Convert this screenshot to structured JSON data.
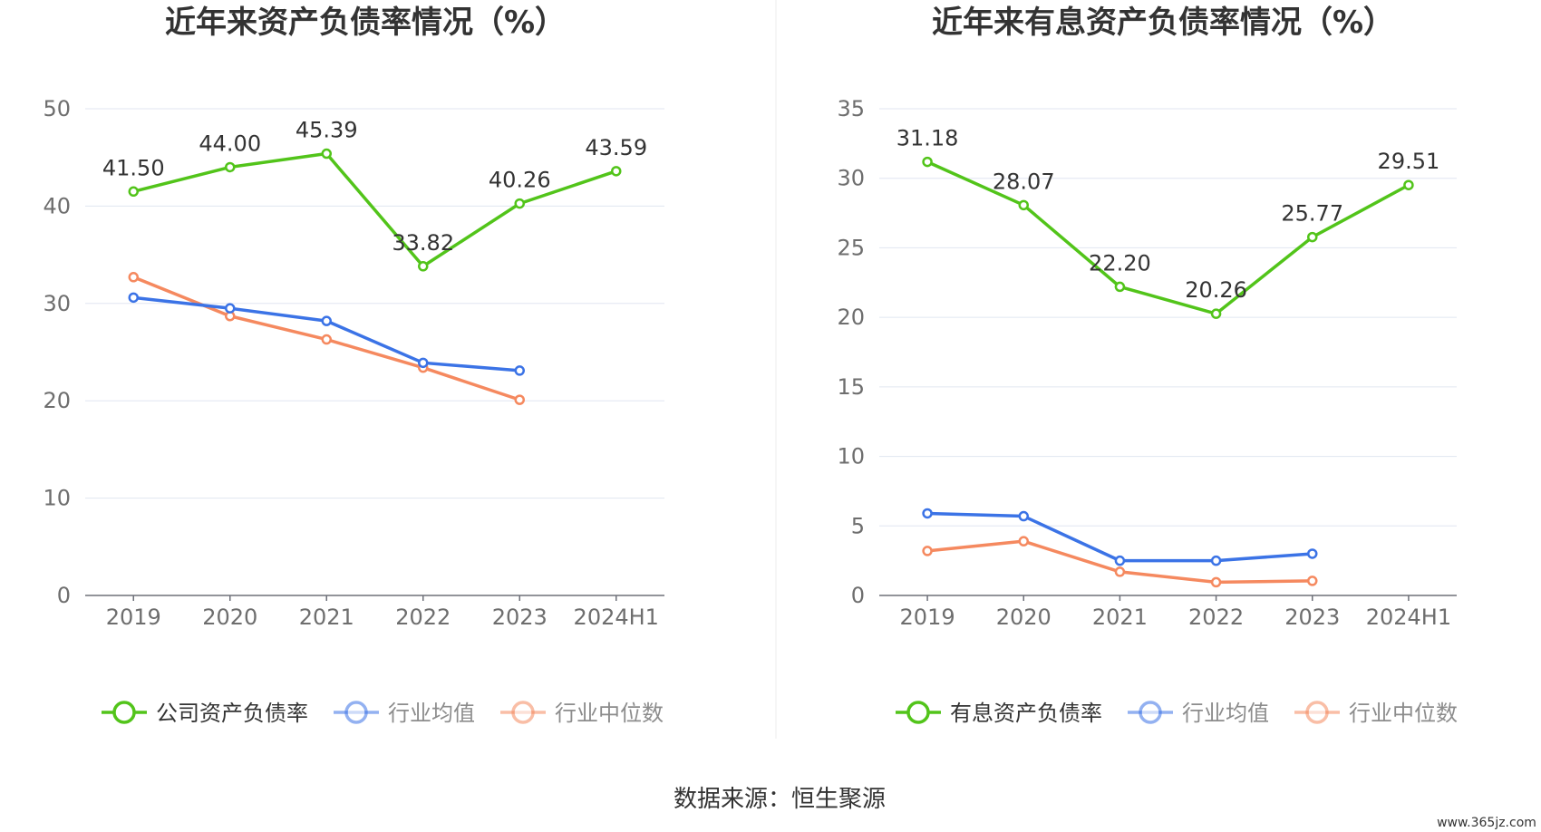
{
  "chart_data": [
    {
      "type": "line",
      "title": "近年来资产负债率情况（%）",
      "categories": [
        "2019",
        "2020",
        "2021",
        "2022",
        "2023",
        "2024H1"
      ],
      "ylim": [
        0,
        50
      ],
      "yticks": [
        0,
        10,
        20,
        30,
        40,
        50
      ],
      "grid": true,
      "legend_position": "bottom",
      "series": [
        {
          "name": "公司资产负债率",
          "color": "#52c41a",
          "labels": true,
          "values": [
            41.5,
            44.0,
            45.39,
            33.82,
            40.26,
            43.59
          ],
          "value_labels": [
            "41.50",
            "44.00",
            "45.39",
            "33.82",
            "40.26",
            "43.59"
          ]
        },
        {
          "name": "行业均值",
          "color": "#3b73e6",
          "labels": false,
          "values": [
            30.6,
            29.5,
            28.2,
            23.9,
            23.1,
            null
          ]
        },
        {
          "name": "行业中位数",
          "color": "#f5895f",
          "labels": false,
          "values": [
            32.7,
            28.7,
            26.3,
            23.4,
            20.1,
            null
          ]
        }
      ]
    },
    {
      "type": "line",
      "title": "近年来有息资产负债率情况（%）",
      "categories": [
        "2019",
        "2020",
        "2021",
        "2022",
        "2023",
        "2024H1"
      ],
      "ylim": [
        0,
        35
      ],
      "yticks": [
        0,
        5,
        10,
        15,
        20,
        25,
        30,
        35
      ],
      "grid": true,
      "legend_position": "bottom",
      "series": [
        {
          "name": "有息资产负债率",
          "color": "#52c41a",
          "labels": true,
          "values": [
            31.18,
            28.07,
            22.2,
            20.26,
            25.77,
            29.51
          ],
          "value_labels": [
            "31.18",
            "28.07",
            "22.20",
            "20.26",
            "25.77",
            "29.51"
          ]
        },
        {
          "name": "行业均值",
          "color": "#3b73e6",
          "labels": false,
          "values": [
            5.9,
            5.7,
            2.5,
            2.5,
            3.0,
            null
          ]
        },
        {
          "name": "行业中位数",
          "color": "#f5895f",
          "labels": false,
          "values": [
            3.2,
            3.9,
            1.7,
            0.95,
            1.05,
            null
          ]
        }
      ]
    }
  ],
  "source_text": "数据来源：恒生聚源",
  "watermark_text": "www.365jz.com"
}
